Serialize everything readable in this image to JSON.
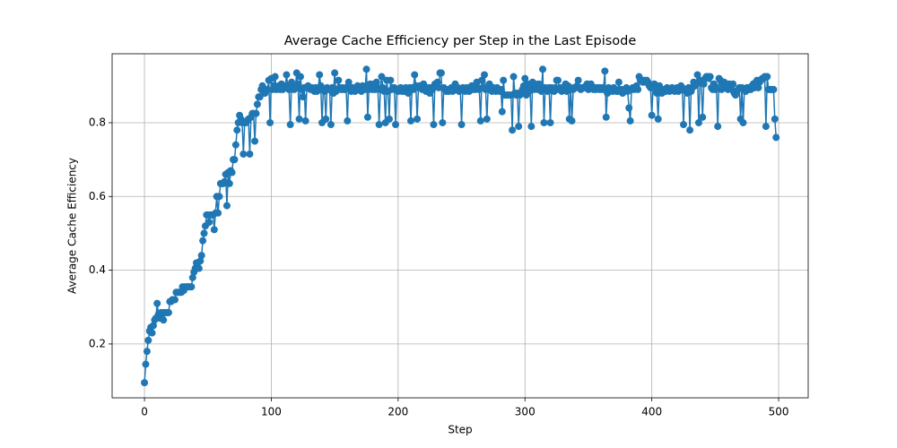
{
  "chart_data": {
    "type": "line",
    "title": "Average Cache Efficiency per Step in the Last Episode",
    "xlabel": "Step",
    "ylabel": "Average Cache Efficiency",
    "grid": true,
    "marker": "o",
    "xlim": [
      -25.5,
      523.3
    ],
    "ylim": [
      0.054,
      0.987
    ],
    "xticks": [
      0,
      100,
      200,
      300,
      400,
      500
    ],
    "yticks": [
      0.2,
      0.4,
      0.6,
      0.8
    ],
    "x": [
      0,
      1,
      2,
      3,
      4,
      5,
      6,
      7,
      8,
      9,
      10,
      11,
      12,
      13,
      14,
      15,
      16,
      17,
      18,
      19,
      20,
      21,
      22,
      23,
      24,
      25,
      26,
      27,
      28,
      29,
      30,
      31,
      32,
      33,
      34,
      35,
      36,
      37,
      38,
      39,
      40,
      41,
      42,
      43,
      44,
      45,
      46,
      47,
      48,
      49,
      50,
      51,
      52,
      53,
      54,
      55,
      56,
      57,
      58,
      59,
      60,
      61,
      62,
      63,
      64,
      65,
      66,
      67,
      68,
      69,
      70,
      71,
      72,
      73,
      74,
      75,
      76,
      77,
      78,
      79,
      80,
      81,
      82,
      83,
      84,
      85,
      86,
      87,
      88,
      89,
      90,
      91,
      92,
      93,
      94,
      95,
      96,
      97,
      98,
      99,
      100,
      101,
      102,
      103,
      104,
      105,
      106,
      107,
      108,
      109,
      110,
      111,
      112,
      113,
      114,
      115,
      116,
      117,
      118,
      119,
      120,
      121,
      122,
      123,
      124,
      125,
      126,
      127,
      128,
      129,
      130,
      131,
      132,
      133,
      134,
      135,
      136,
      137,
      138,
      139,
      140,
      141,
      142,
      143,
      144,
      145,
      146,
      147,
      148,
      149,
      150,
      151,
      152,
      153,
      154,
      155,
      156,
      157,
      158,
      159,
      160,
      161,
      162,
      163,
      164,
      165,
      166,
      167,
      168,
      169,
      170,
      171,
      172,
      173,
      174,
      175,
      176,
      177,
      178,
      179,
      180,
      181,
      182,
      183,
      184,
      185,
      186,
      187,
      188,
      189,
      190,
      191,
      192,
      193,
      194,
      195,
      196,
      197,
      198,
      199,
      200,
      201,
      202,
      203,
      204,
      205,
      206,
      207,
      208,
      209,
      210,
      211,
      212,
      213,
      214,
      215,
      216,
      217,
      218,
      219,
      220,
      221,
      222,
      223,
      224,
      225,
      226,
      227,
      228,
      229,
      230,
      231,
      232,
      233,
      234,
      235,
      236,
      237,
      238,
      239,
      240,
      241,
      242,
      243,
      244,
      245,
      246,
      247,
      248,
      249,
      250,
      251,
      252,
      253,
      254,
      255,
      256,
      257,
      258,
      259,
      260,
      261,
      262,
      263,
      264,
      265,
      266,
      267,
      268,
      269,
      270,
      271,
      272,
      273,
      274,
      275,
      276,
      277,
      278,
      279,
      280,
      281,
      282,
      283,
      284,
      285,
      286,
      287,
      288,
      289,
      290,
      291,
      292,
      293,
      294,
      295,
      296,
      297,
      298,
      299,
      300,
      301,
      302,
      303,
      304,
      305,
      306,
      307,
      308,
      309,
      310,
      311,
      312,
      313,
      314,
      315,
      316,
      317,
      318,
      319,
      320,
      321,
      322,
      323,
      324,
      325,
      326,
      327,
      328,
      329,
      330,
      331,
      332,
      333,
      334,
      335,
      336,
      337,
      338,
      339,
      340,
      341,
      342,
      343,
      344,
      345,
      346,
      347,
      348,
      349,
      350,
      351,
      352,
      353,
      354,
      355,
      356,
      357,
      358,
      359,
      360,
      361,
      362,
      363,
      364,
      365,
      366,
      367,
      368,
      369,
      370,
      371,
      372,
      373,
      374,
      375,
      376,
      377,
      378,
      379,
      380,
      381,
      382,
      383,
      384,
      385,
      386,
      387,
      388,
      389,
      390,
      391,
      392,
      393,
      394,
      395,
      396,
      397,
      398,
      399,
      400,
      401,
      402,
      403,
      404,
      405,
      406,
      407,
      408,
      409,
      410,
      411,
      412,
      413,
      414,
      415,
      416,
      417,
      418,
      419,
      420,
      421,
      422,
      423,
      424,
      425,
      426,
      427,
      428,
      429,
      430,
      431,
      432,
      433,
      434,
      435,
      436,
      437,
      438,
      439,
      440,
      441,
      442,
      443,
      444,
      445,
      446,
      447,
      448,
      449,
      450,
      451,
      452,
      453,
      454,
      455,
      456,
      457,
      458,
      459,
      460,
      461,
      462,
      463,
      464,
      465,
      466,
      467,
      468,
      469,
      470,
      471,
      472,
      473,
      474,
      475,
      476,
      477,
      478,
      479,
      480,
      481,
      482,
      483,
      484,
      485,
      486,
      487,
      488,
      489,
      490,
      491,
      492,
      493,
      494,
      495,
      496,
      497,
      498
    ],
    "series": [
      {
        "color": "#1f77b4",
        "values": [
          0.095,
          0.145,
          0.18,
          0.21,
          0.235,
          0.245,
          0.23,
          0.25,
          0.265,
          0.27,
          0.31,
          0.28,
          0.27,
          0.285,
          0.285,
          0.265,
          0.285,
          0.285,
          0.285,
          0.285,
          0.315,
          0.315,
          0.32,
          0.32,
          0.32,
          0.34,
          0.34,
          0.34,
          0.34,
          0.34,
          0.355,
          0.345,
          0.355,
          0.355,
          0.355,
          0.355,
          0.355,
          0.355,
          0.38,
          0.395,
          0.405,
          0.42,
          0.42,
          0.405,
          0.425,
          0.44,
          0.48,
          0.5,
          0.52,
          0.55,
          0.55,
          0.53,
          0.55,
          0.55,
          0.55,
          0.51,
          0.555,
          0.6,
          0.555,
          0.6,
          0.635,
          0.635,
          0.635,
          0.64,
          0.66,
          0.575,
          0.665,
          0.635,
          0.67,
          0.665,
          0.7,
          0.7,
          0.74,
          0.78,
          0.8,
          0.82,
          0.81,
          0.8,
          0.715,
          0.8,
          0.8,
          0.805,
          0.81,
          0.715,
          0.815,
          0.825,
          0.825,
          0.75,
          0.825,
          0.85,
          0.87,
          0.87,
          0.89,
          0.9,
          0.89,
          0.88,
          0.89,
          0.89,
          0.915,
          0.8,
          0.92,
          0.89,
          0.9,
          0.925,
          0.89,
          0.895,
          0.9,
          0.89,
          0.905,
          0.89,
          0.9,
          0.895,
          0.93,
          0.9,
          0.89,
          0.795,
          0.91,
          0.9,
          0.89,
          0.895,
          0.935,
          0.905,
          0.81,
          0.925,
          0.89,
          0.87,
          0.895,
          0.805,
          0.895,
          0.9,
          0.895,
          0.89,
          0.895,
          0.89,
          0.885,
          0.895,
          0.885,
          0.89,
          0.93,
          0.9,
          0.8,
          0.89,
          0.885,
          0.81,
          0.895,
          0.89,
          0.89,
          0.795,
          0.895,
          0.88,
          0.935,
          0.885,
          0.89,
          0.915,
          0.895,
          0.89,
          0.895,
          0.89,
          0.89,
          0.895,
          0.805,
          0.91,
          0.89,
          0.885,
          0.895,
          0.89,
          0.885,
          0.895,
          0.9,
          0.89,
          0.895,
          0.885,
          0.9,
          0.895,
          0.89,
          0.945,
          0.815,
          0.89,
          0.905,
          0.895,
          0.89,
          0.905,
          0.89,
          0.91,
          0.895,
          0.795,
          0.89,
          0.925,
          0.895,
          0.885,
          0.8,
          0.915,
          0.885,
          0.81,
          0.915,
          0.89,
          0.895,
          0.895,
          0.795,
          0.89,
          0.885,
          0.89,
          0.895,
          0.885,
          0.89,
          0.885,
          0.895,
          0.89,
          0.88,
          0.895,
          0.805,
          0.895,
          0.89,
          0.93,
          0.9,
          0.81,
          0.895,
          0.9,
          0.895,
          0.89,
          0.905,
          0.895,
          0.885,
          0.89,
          0.895,
          0.88,
          0.895,
          0.89,
          0.795,
          0.905,
          0.9,
          0.91,
          0.895,
          0.935,
          0.935,
          0.8,
          0.895,
          0.89,
          0.885,
          0.89,
          0.885,
          0.89,
          0.895,
          0.885,
          0.895,
          0.905,
          0.89,
          0.895,
          0.885,
          0.89,
          0.795,
          0.895,
          0.89,
          0.885,
          0.895,
          0.89,
          0.885,
          0.895,
          0.9,
          0.89,
          0.895,
          0.89,
          0.91,
          0.895,
          0.89,
          0.805,
          0.915,
          0.895,
          0.93,
          0.89,
          0.81,
          0.895,
          0.905,
          0.89,
          0.885,
          0.895,
          0.89,
          0.885,
          0.895,
          0.89,
          0.885,
          0.89,
          0.83,
          0.915,
          0.875,
          0.875,
          0.875,
          0.875,
          0.875,
          0.875,
          0.78,
          0.925,
          0.88,
          0.875,
          0.88,
          0.79,
          0.875,
          0.88,
          0.89,
          0.9,
          0.92,
          0.875,
          0.905,
          0.885,
          0.895,
          0.79,
          0.91,
          0.89,
          0.905,
          0.895,
          0.89,
          0.905,
          0.895,
          0.885,
          0.945,
          0.8,
          0.895,
          0.89,
          0.885,
          0.895,
          0.8,
          0.895,
          0.89,
          0.885,
          0.895,
          0.915,
          0.915,
          0.89,
          0.895,
          0.885,
          0.89,
          0.895,
          0.905,
          0.885,
          0.9,
          0.81,
          0.895,
          0.805,
          0.89,
          0.895,
          0.895,
          0.9,
          0.915,
          0.895,
          0.89,
          0.895,
          0.895,
          0.895,
          0.9,
          0.905,
          0.89,
          0.895,
          0.905,
          0.895,
          0.89,
          0.895,
          0.89,
          0.895,
          0.895,
          0.89,
          0.895,
          0.89,
          0.895,
          0.94,
          0.815,
          0.88,
          0.895,
          0.885,
          0.89,
          0.885,
          0.895,
          0.89,
          0.885,
          0.885,
          0.91,
          0.885,
          0.89,
          0.88,
          0.885,
          0.89,
          0.895,
          0.885,
          0.84,
          0.805,
          0.89,
          0.895,
          0.89,
          0.895,
          0.9,
          0.89,
          0.925,
          0.915,
          0.915,
          0.91,
          0.915,
          0.91,
          0.915,
          0.91,
          0.9,
          0.895,
          0.82,
          0.895,
          0.905,
          0.89,
          0.88,
          0.81,
          0.9,
          0.89,
          0.88,
          0.885,
          0.89,
          0.885,
          0.895,
          0.89,
          0.885,
          0.89,
          0.895,
          0.89,
          0.885,
          0.89,
          0.895,
          0.885,
          0.89,
          0.9,
          0.895,
          0.795,
          0.89,
          0.885,
          0.88,
          0.895,
          0.78,
          0.885,
          0.895,
          0.91,
          0.9,
          0.905,
          0.93,
          0.8,
          0.915,
          0.91,
          0.815,
          0.905,
          0.92,
          0.925,
          0.925,
          0.92,
          0.925,
          0.895,
          0.89,
          0.905,
          0.89,
          0.895,
          0.79,
          0.92,
          0.915,
          0.89,
          0.905,
          0.91,
          0.895,
          0.905,
          0.89,
          0.905,
          0.895,
          0.89,
          0.905,
          0.88,
          0.875,
          0.885,
          0.89,
          0.895,
          0.81,
          0.895,
          0.8,
          0.89,
          0.885,
          0.895,
          0.895,
          0.89,
          0.89,
          0.9,
          0.905,
          0.895,
          0.91,
          0.915,
          0.895,
          0.91,
          0.915,
          0.92,
          0.92,
          0.925,
          0.79,
          0.925,
          0.89,
          0.89,
          0.89,
          0.89,
          0.89,
          0.81,
          0.76
        ]
      }
    ]
  }
}
